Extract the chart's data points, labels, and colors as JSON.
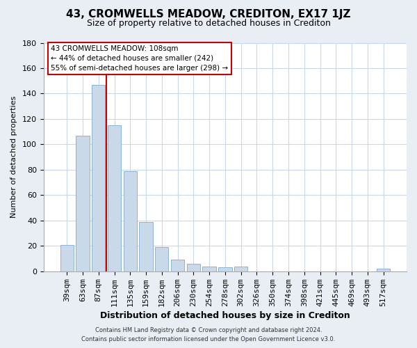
{
  "title": "43, CROMWELLS MEADOW, CREDITON, EX17 1JZ",
  "subtitle": "Size of property relative to detached houses in Crediton",
  "xlabel": "Distribution of detached houses by size in Crediton",
  "ylabel": "Number of detached properties",
  "bar_labels": [
    "39sqm",
    "63sqm",
    "87sqm",
    "111sqm",
    "135sqm",
    "159sqm",
    "182sqm",
    "206sqm",
    "230sqm",
    "254sqm",
    "278sqm",
    "302sqm",
    "326sqm",
    "350sqm",
    "374sqm",
    "398sqm",
    "421sqm",
    "445sqm",
    "469sqm",
    "493sqm",
    "517sqm"
  ],
  "bar_values": [
    21,
    107,
    147,
    115,
    79,
    39,
    19,
    9,
    6,
    4,
    3,
    4,
    0,
    0,
    0,
    0,
    0,
    0,
    0,
    0,
    2
  ],
  "bar_color": "#c9d9ea",
  "bar_edge_color": "#8ab4d4",
  "vline_x_index": 2.5,
  "vline_color": "#cc0000",
  "ylim": [
    0,
    180
  ],
  "yticks": [
    0,
    20,
    40,
    60,
    80,
    100,
    120,
    140,
    160,
    180
  ],
  "annotation_title": "43 CROMWELLS MEADOW: 108sqm",
  "annotation_line1": "← 44% of detached houses are smaller (242)",
  "annotation_line2": "55% of semi-detached houses are larger (298) →",
  "footer1": "Contains HM Land Registry data © Crown copyright and database right 2024.",
  "footer2": "Contains public sector information licensed under the Open Government Licence v3.0.",
  "bg_color": "#e8eef4",
  "plot_bg_color": "#ffffff",
  "grid_color": "#c8d8e8",
  "title_fontsize": 11,
  "subtitle_fontsize": 9,
  "xlabel_fontsize": 9,
  "ylabel_fontsize": 8,
  "tick_fontsize": 8,
  "footer_fontsize": 6
}
